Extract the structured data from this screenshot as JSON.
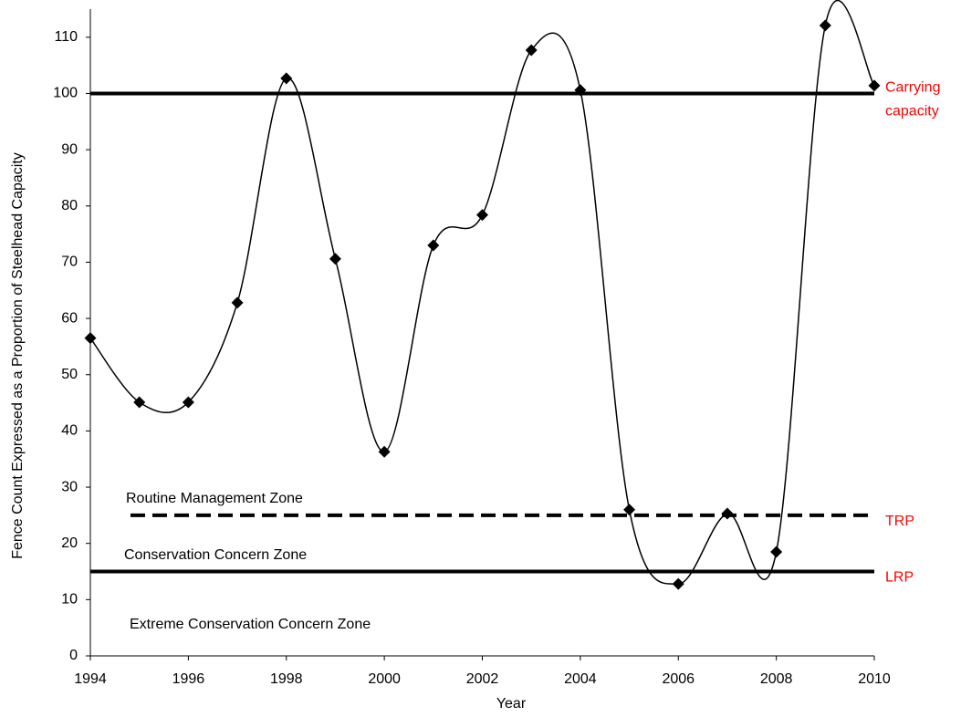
{
  "chart_data": {
    "type": "line",
    "x_label": "Year",
    "y_label": "Fence Count Expressed as a Proportion of Steelhead Capacity",
    "x": [
      1994,
      1995,
      1996,
      1997,
      1998,
      1999,
      2000,
      2001,
      2002,
      2003,
      2004,
      2005,
      2006,
      2007,
      2008,
      2009,
      2010
    ],
    "series": [
      {
        "color": "#000000",
        "smooth": true,
        "values": [
          56.5,
          45.1,
          45.1,
          62.8,
          102.7,
          70.6,
          36.3,
          73.0,
          78.4,
          107.7,
          100.6,
          26.0,
          12.8,
          25.3,
          18.5,
          112.1,
          101.4
        ]
      }
    ],
    "xlim": [
      1994,
      2010
    ],
    "xticks": [
      1994,
      1996,
      1998,
      2000,
      2002,
      2004,
      2006,
      2008,
      2010
    ],
    "ylim": [
      0,
      115
    ],
    "yticks": [
      0,
      10,
      20,
      30,
      40,
      50,
      60,
      70,
      80,
      90,
      100,
      110
    ],
    "reference_lines": [
      {
        "value": 100,
        "style": "solid",
        "label": [
          "Carrying",
          "capacity"
        ],
        "label_color": "#ff0000"
      },
      {
        "value": 25,
        "style": "dashed",
        "label": "TRP",
        "label_color": "#ff0000"
      },
      {
        "value": 15,
        "style": "solid",
        "label": "LRP",
        "label_color": "#ff0000"
      }
    ],
    "annotations": [
      "Routine Management Zone",
      "Conservation Concern Zone",
      "Extreme Conservation Concern Zone"
    ]
  }
}
